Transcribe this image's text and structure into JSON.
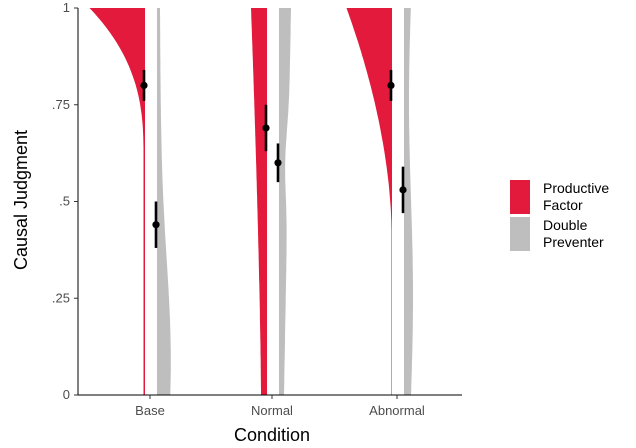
{
  "chart_data": {
    "type": "violin",
    "xlabel": "Condition",
    "ylabel": "Causal Judgment",
    "categories": [
      "Base",
      "Normal",
      "Abnormal"
    ],
    "ylim": [
      0,
      1
    ],
    "yticks": [
      0,
      0.25,
      0.5,
      0.75,
      1
    ],
    "ytick_labels": [
      "0",
      ".25",
      ".5",
      ".75",
      "1"
    ],
    "grid": false,
    "legend_position": "right",
    "colors": {
      "Productive Factor": "#e31a3c",
      "Double Preventer": "#bebebe"
    },
    "series": [
      {
        "name": "Productive Factor",
        "means": [
          0.8,
          0.69,
          0.8
        ],
        "ci_low": [
          0.76,
          0.63,
          0.76
        ],
        "ci_high": [
          0.84,
          0.75,
          0.84
        ]
      },
      {
        "name": "Double Preventer",
        "means": [
          0.44,
          0.6,
          0.53
        ],
        "ci_low": [
          0.38,
          0.55,
          0.47
        ],
        "ci_high": [
          0.5,
          0.65,
          0.59
        ]
      }
    ]
  },
  "legend": {
    "items": [
      {
        "label": "Productive\nFactor",
        "color": "#e31a3c"
      },
      {
        "label": "Double\nPreventer",
        "color": "#bebebe"
      }
    ]
  }
}
